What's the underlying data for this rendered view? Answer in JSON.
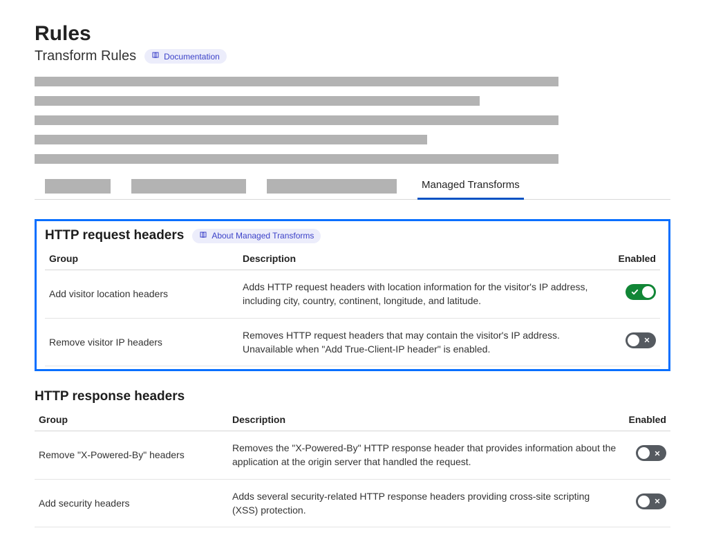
{
  "page": {
    "title": "Rules",
    "subtitle": "Transform Rules",
    "doc_link_label": "Documentation"
  },
  "skeleton": {
    "lines": [
      758,
      644,
      758,
      568,
      758
    ],
    "tab_skeletons": [
      95,
      166,
      188
    ]
  },
  "tabs": {
    "active_label": "Managed Transforms"
  },
  "columns": {
    "group": "Group",
    "description": "Description",
    "enabled": "Enabled"
  },
  "request_section": {
    "title": "HTTP request headers",
    "about_link": "About Managed Transforms",
    "rows": [
      {
        "group": "Add visitor location headers",
        "description": "Adds HTTP request headers with location information for the visitor's IP address, including city, country, continent, longitude, and latitude.",
        "enabled": true
      },
      {
        "group": "Remove visitor IP headers",
        "description": "Removes HTTP request headers that may contain the visitor's IP address. Unavailable when \"Add True-Client-IP header\" is enabled.",
        "enabled": false
      }
    ]
  },
  "response_section": {
    "title": "HTTP response headers",
    "rows": [
      {
        "group": "Remove \"X-Powered-By\" headers",
        "description": "Removes the \"X-Powered-By\" HTTP response header that provides information about the application at the origin server that handled the request.",
        "enabled": false
      },
      {
        "group": "Add security headers",
        "description": "Adds several security-related HTTP response headers providing cross-site scripting (XSS) protection.",
        "enabled": false
      }
    ]
  },
  "colors": {
    "highlight_border": "#086fff",
    "toggle_on": "#118636",
    "toggle_off": "#555a60",
    "link_bg": "#ecedfb",
    "link_fg": "#3b41c8",
    "skeleton": "#b3b3b3"
  }
}
